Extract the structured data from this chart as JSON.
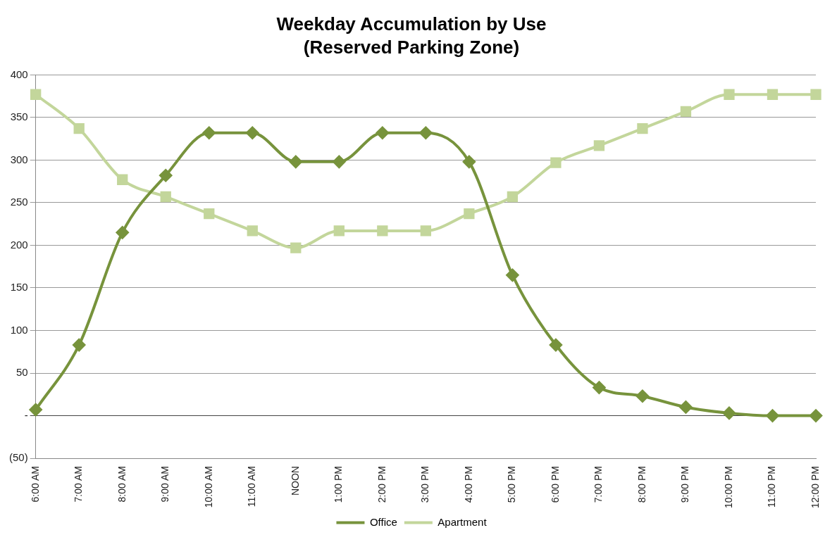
{
  "chart_data": {
    "type": "line",
    "title": "Weekday Accumulation by Use",
    "subtitle": "(Reserved Parking Zone)",
    "categories": [
      "6:00 AM",
      "7:00 AM",
      "8:00 AM",
      "9:00 AM",
      "10:00 AM",
      "11:00 AM",
      "NOON",
      "1:00 PM",
      "2:00 PM",
      "3:00 PM",
      "4:00 PM",
      "5:00 PM",
      "6:00 PM",
      "7:00 PM",
      "8:00 PM",
      "9:00 PM",
      "10:00 PM",
      "11:00 PM",
      "12:00 PM"
    ],
    "series": [
      {
        "name": "Office",
        "color": "#77933c",
        "marker": "diamond",
        "values": [
          7,
          83,
          215,
          282,
          332,
          332,
          298,
          298,
          332,
          332,
          298,
          165,
          83,
          33,
          23,
          10,
          3,
          0,
          0
        ]
      },
      {
        "name": "Apartment",
        "color": "#c3d69b",
        "marker": "square",
        "values": [
          377,
          337,
          277,
          257,
          237,
          217,
          197,
          217,
          217,
          217,
          237,
          257,
          297,
          317,
          337,
          357,
          377,
          377,
          377
        ]
      }
    ],
    "ylim": [
      -50,
      400
    ],
    "yticks": [
      {
        "value": -50,
        "label": "(50)"
      },
      {
        "value": 0,
        "label": "-"
      },
      50,
      100,
      150,
      200,
      250,
      300,
      350,
      400
    ],
    "grid": "y",
    "legend": "bottom",
    "line_style": "solid"
  }
}
